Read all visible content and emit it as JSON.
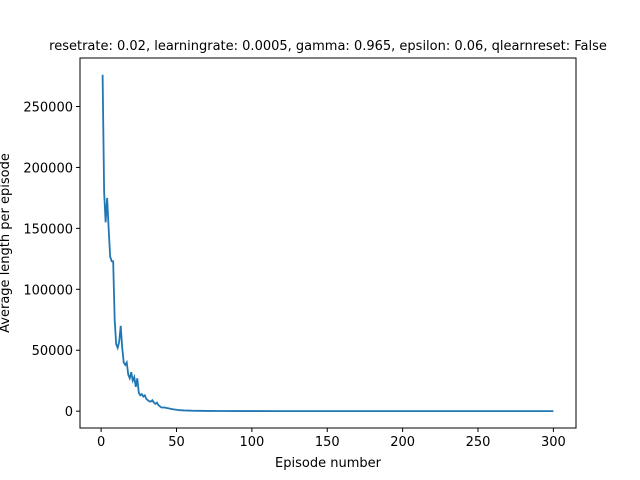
{
  "chart_data": {
    "type": "line",
    "title": "resetrate: 0.02, learningrate: 0.0005, gamma: 0.965, epsilon: 0.06, qlearnreset: False",
    "xlabel": "Episode number",
    "ylabel": "Average length per episode",
    "xlim": [
      -14,
      315
    ],
    "ylim": [
      -13800,
      289800
    ],
    "xticks": [
      0,
      50,
      100,
      150,
      200,
      250,
      300
    ],
    "yticks": [
      0,
      50000,
      100000,
      150000,
      200000,
      250000
    ],
    "line_color": "#1f77b4",
    "grid": false,
    "series": [
      {
        "x": [
          1,
          2,
          3,
          4,
          5,
          6,
          7,
          8,
          9,
          10,
          11,
          12,
          13,
          14,
          15,
          16,
          17,
          18,
          19,
          20,
          21,
          22,
          23,
          24,
          25,
          26,
          27,
          28,
          29,
          30,
          31,
          32,
          33,
          34,
          35,
          36,
          37,
          38,
          39,
          40,
          42,
          44,
          46,
          48,
          50,
          52,
          55,
          58,
          60,
          65,
          70,
          80,
          90,
          100,
          120,
          150,
          200,
          250,
          300
        ],
        "y": [
          276000,
          180000,
          155000,
          175000,
          150000,
          127000,
          123000,
          123000,
          75000,
          55000,
          52000,
          57000,
          70000,
          52000,
          40000,
          38000,
          40000,
          30000,
          27000,
          32000,
          25000,
          28000,
          20000,
          27000,
          15000,
          13000,
          14000,
          12000,
          13000,
          10000,
          9000,
          8000,
          8000,
          9000,
          7000,
          6000,
          7000,
          5000,
          4000,
          3000,
          3000,
          2500,
          2000,
          1500,
          1200,
          800,
          600,
          500,
          400,
          300,
          200,
          150,
          100,
          80,
          60,
          50,
          40,
          30,
          30
        ]
      }
    ]
  }
}
